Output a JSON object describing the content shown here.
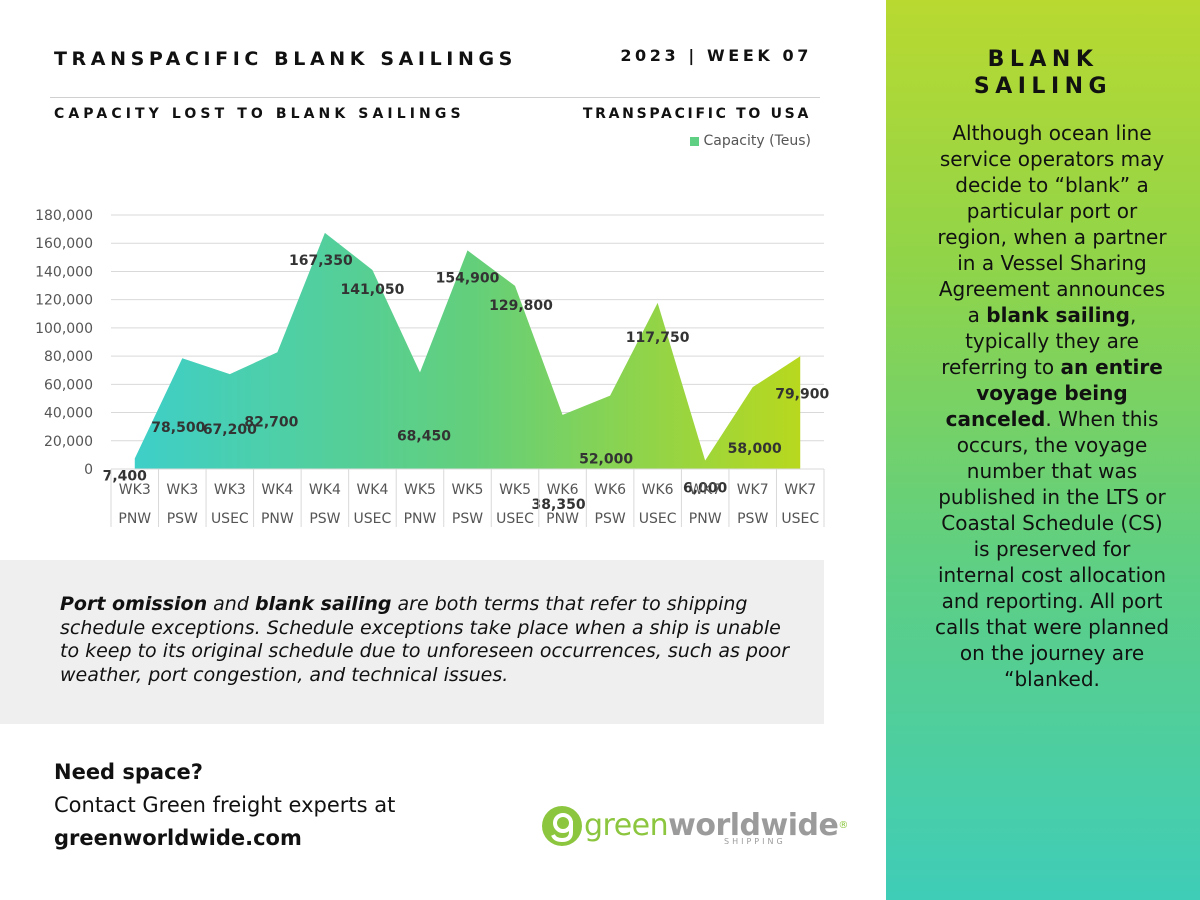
{
  "header": {
    "title": "TRANSPACIFIC BLANK SAILINGS",
    "week": "2023 | WEEK 07",
    "subtitle": "CAPACITY LOST TO BLANK SAILINGS",
    "region": "TRANSPACIFIC TO USA"
  },
  "colors": {
    "gradient_start": "#3ecfc8",
    "gradient_mid": "#62cf7c",
    "gradient_end": "#b8d81e",
    "sidebar_top": "#b9d930",
    "sidebar_bottom": "#3fcdb8",
    "logo_green": "#8cc63f",
    "logo_grey": "#9b9b9b"
  },
  "chart_data": {
    "type": "area",
    "series": [
      {
        "name": "Capacity (Teus)",
        "values": [
          7400,
          78500,
          67200,
          82700,
          167350,
          141050,
          68450,
          154900,
          129800,
          38350,
          52000,
          117750,
          6000,
          58000,
          79900
        ]
      }
    ],
    "categories": [
      [
        "WK3",
        "PNW"
      ],
      [
        "WK3",
        "PSW"
      ],
      [
        "WK3",
        "USEC"
      ],
      [
        "WK4",
        "PNW"
      ],
      [
        "WK4",
        "PSW"
      ],
      [
        "WK4",
        "USEC"
      ],
      [
        "WK5",
        "PNW"
      ],
      [
        "WK5",
        "PSW"
      ],
      [
        "WK5",
        "USEC"
      ],
      [
        "WK6",
        "PNW"
      ],
      [
        "WK6",
        "PSW"
      ],
      [
        "WK6",
        "USEC"
      ],
      [
        "WK7",
        "PNW"
      ],
      [
        "WK7",
        "PSW"
      ],
      [
        "WK7",
        "USEC"
      ]
    ],
    "data_labels": [
      "7,400",
      "78,500",
      "67,200",
      "82,700",
      "167,350",
      "141,050",
      "68,450",
      "154,900",
      "129,800",
      "38,350",
      "52,000",
      "117,750",
      "6,000",
      "58,000",
      "79,900"
    ],
    "y_ticks": [
      "0",
      "20,000",
      "40,000",
      "60,000",
      "80,000",
      "100,000",
      "120,000",
      "140,000",
      "160,000",
      "180,000"
    ],
    "ylim": [
      0,
      180000
    ],
    "grid": true,
    "legend": "top-right"
  },
  "note": {
    "bold1": "Port omission",
    "text1": " and ",
    "bold2": "blank sailing",
    "text2": " are both terms that refer to shipping schedule exceptions. Schedule exceptions take place when a ship is unable to keep to its original schedule due to unforeseen occurrences, such as poor weather, port congestion, and technical issues."
  },
  "cta": {
    "heading": "Need space?",
    "line": "Contact Green freight experts at",
    "website": "greenworldwide.com"
  },
  "logo": {
    "green": "green",
    "world": "worldwide",
    "reg": "®",
    "sub": "SHIPPING"
  },
  "sidebar": {
    "title": "BLANK SAILING",
    "p1": "Although ocean line service operators may decide to “blank” a particular port or region, when a partner in a Vessel Sharing Agreement announces a ",
    "b1": "blank sailing",
    "p2": ", typically they are referring to ",
    "b2": "an entire voyage being canceled",
    "p3": ". When this occurs, the voyage number that was published in the LTS or Coastal Schedule (CS) is preserved for internal cost allocation and reporting. All port calls that were planned on the journey are “blanked."
  }
}
